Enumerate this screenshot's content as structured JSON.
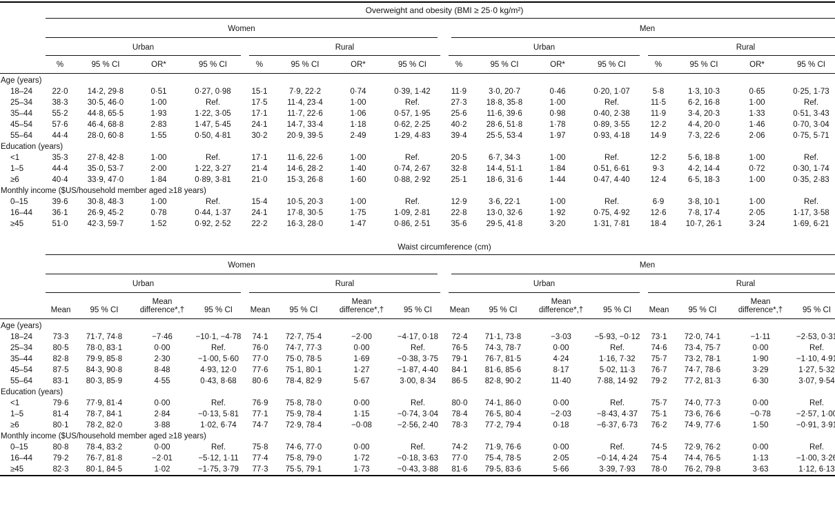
{
  "page": {
    "background": "#ffffff",
    "text_color": "#131313",
    "rule_color": "#000000"
  },
  "tables": [
    {
      "title": "Overweight and obesity (BMI ≥ 25·0 kg/m²)",
      "gender_groups": [
        "Women",
        "Men"
      ],
      "area_groups": [
        "Urban",
        "Rural",
        "Urban",
        "Rural"
      ],
      "columns": [
        "%",
        "95 % CI",
        "OR*",
        "95 % CI"
      ],
      "sections": [
        {
          "label": "Age (years)",
          "rows": [
            {
              "label": "18–24",
              "values": [
                "22·0",
                "14·2, 29·8",
                "0·51",
                "0·27, 0·98",
                "15·1",
                "7·9, 22·2",
                "0·74",
                "0·39, 1·42",
                "11·9",
                "3·0, 20·7",
                "0·46",
                "0·20, 1·07",
                "5·8",
                "1·3, 10·3",
                "0·65",
                "0·25, 1·73"
              ]
            },
            {
              "label": "25–34",
              "values": [
                "38·3",
                "30·5, 46·0",
                "1·00",
                "Ref.",
                "17·5",
                "11·4, 23·4",
                "1·00",
                "Ref.",
                "27·3",
                "18·8, 35·8",
                "1·00",
                "Ref.",
                "11·5",
                "6·2, 16·8",
                "1·00",
                "Ref."
              ]
            },
            {
              "label": "35–44",
              "values": [
                "55·2",
                "44·8, 65·5",
                "1·93",
                "1·22, 3·05",
                "17·1",
                "11·7, 22·6",
                "1·06",
                "0·57, 1·95",
                "25·6",
                "11·6, 39·6",
                "0·98",
                "0·40, 2·38",
                "11·9",
                "3·4, 20·3",
                "1·33",
                "0·51, 3·43"
              ]
            },
            {
              "label": "45–54",
              "values": [
                "57·6",
                "46·4, 68·8",
                "2·83",
                "1·47, 5·45",
                "24·1",
                "14·7, 33·4",
                "1·18",
                "0·62, 2·25",
                "40·2",
                "28·6, 51·8",
                "1·78",
                "0·89, 3·55",
                "12·2",
                "4·4, 20·0",
                "1·46",
                "0·70, 3·04"
              ]
            },
            {
              "label": "55–64",
              "values": [
                "44·4",
                "28·0, 60·8",
                "1·55",
                "0·50, 4·81",
                "30·2",
                "20·9, 39·5",
                "2·49",
                "1·29, 4·83",
                "39·4",
                "25·5, 53·4",
                "1·97",
                "0·93, 4·18",
                "14·9",
                "7·3, 22·6",
                "2·06",
                "0·75, 5·71"
              ]
            }
          ]
        },
        {
          "label": "Education (years)",
          "rows": [
            {
              "label": "<1",
              "values": [
                "35·3",
                "27·8, 42·8",
                "1·00",
                "Ref.",
                "17·1",
                "11·6, 22·6",
                "1·00",
                "Ref.",
                "20·5",
                "6·7, 34·3",
                "1·00",
                "Ref.",
                "12·2",
                "5·6, 18·8",
                "1·00",
                "Ref."
              ]
            },
            {
              "label": "1–5",
              "values": [
                "44·4",
                "35·0, 53·7",
                "2·00",
                "1·22, 3·27",
                "21·4",
                "14·6, 28·2",
                "1·40",
                "0·74, 2·67",
                "32·8",
                "14·4, 51·1",
                "1·84",
                "0·51, 6·61",
                "9·3",
                "4·2, 14·4",
                "0·72",
                "0·30, 1·74"
              ]
            },
            {
              "label": "≥6",
              "values": [
                "40·4",
                "33·9, 47·0",
                "1·84",
                "0·89, 3·81",
                "21·0",
                "15·3, 26·8",
                "1·60",
                "0·88, 2·92",
                "25·1",
                "18·6, 31·6",
                "1·44",
                "0·47, 4·40",
                "12·4",
                "6·5, 18·3",
                "1·00",
                "0·35, 2·83"
              ]
            }
          ]
        },
        {
          "label": "Monthly income ($US/household member aged ≥18 years)",
          "rows": [
            {
              "label": "0–15",
              "values": [
                "39·6",
                "30·8, 48·3",
                "1·00",
                "Ref.",
                "15·4",
                "10·5, 20·3",
                "1·00",
                "Ref.",
                "12·9",
                "3·6, 22·1",
                "1·00",
                "Ref.",
                "6·9",
                "3·8, 10·1",
                "1·00",
                "Ref."
              ]
            },
            {
              "label": "16–44",
              "values": [
                "36·1",
                "26·9, 45·2",
                "0·78",
                "0·44, 1·37",
                "24·1",
                "17·8, 30·5",
                "1·75",
                "1·09, 2·81",
                "22·8",
                "13·0, 32·6",
                "1·92",
                "0·75, 4·92",
                "12·6",
                "7·8, 17·4",
                "2·05",
                "1·17, 3·58"
              ]
            },
            {
              "label": "≥45",
              "values": [
                "51·0",
                "42·3, 59·7",
                "1·52",
                "0·92, 2·52",
                "22·2",
                "16·3, 28·0",
                "1·47",
                "0·86, 2·51",
                "35·6",
                "29·5, 41·8",
                "3·20",
                "1·31, 7·81",
                "18·4",
                "10·7, 26·1",
                "3·24",
                "1·69, 6·21"
              ]
            }
          ]
        }
      ]
    },
    {
      "title": "Waist circumference (cm)",
      "gender_groups": [
        "Women",
        "Men"
      ],
      "area_groups": [
        "Urban",
        "Rural",
        "Urban",
        "Rural"
      ],
      "columns": [
        "Mean",
        "95 % CI",
        "Mean difference*,†",
        "95 % CI"
      ],
      "sections": [
        {
          "label": "Age (years)",
          "rows": [
            {
              "label": "18–24",
              "values": [
                "73·3",
                "71·7, 74·8",
                "−7·46",
                "−10·1, −4·78",
                "74·1",
                "72·7, 75·4",
                "−2·00",
                "−4·17, 0·18",
                "72·4",
                "71·1, 73·8",
                "−3·03",
                "−5·93, −0·12",
                "73·1",
                "72·0, 74·1",
                "−1·11",
                "−2·53, 0·31"
              ]
            },
            {
              "label": "25–34",
              "values": [
                "80·5",
                "78·0, 83·1",
                "0·00",
                "Ref.",
                "76·0",
                "74·7, 77·3",
                "0·00",
                "Ref.",
                "76·5",
                "74·3, 78·7",
                "0·00",
                "Ref.",
                "74·6",
                "73·4, 75·7",
                "0·00",
                "Ref."
              ]
            },
            {
              "label": "35–44",
              "values": [
                "82·8",
                "79·9, 85·8",
                "2·30",
                "−1·00, 5·60",
                "77·0",
                "75·0, 78·5",
                "1·69",
                "−0·38, 3·75",
                "79·1",
                "76·7, 81·5",
                "4·24",
                "1·16, 7·32",
                "75·7",
                "73·2, 78·1",
                "1·90",
                "−1·10, 4·91"
              ]
            },
            {
              "label": "45–54",
              "values": [
                "87·5",
                "84·3, 90·8",
                "8·48",
                "4·93, 12·0",
                "77·6",
                "75·1, 80·1",
                "1·27",
                "−1·87, 4·40",
                "84·1",
                "81·6, 85·6",
                "8·17",
                "5·02, 11·3",
                "76·7",
                "74·7, 78·6",
                "3·29",
                "1·27, 5·32"
              ]
            },
            {
              "label": "55–64",
              "values": [
                "83·1",
                "80·3, 85·9",
                "4·55",
                "0·43, 8·68",
                "80·6",
                "78·4, 82·9",
                "5·67",
                "3·00, 8·34",
                "86·5",
                "82·8, 90·2",
                "11·40",
                "7·88, 14·92",
                "79·2",
                "77·2, 81·3",
                "6·30",
                "3·07, 9·54"
              ]
            }
          ]
        },
        {
          "label": "Education (years)",
          "rows": [
            {
              "label": "<1",
              "values": [
                "79·6",
                "77·9, 81·4",
                "0·00",
                "Ref.",
                "76·9",
                "75·8, 78·0",
                "0·00",
                "Ref.",
                "80·0",
                "74·1, 86·0",
                "0·00",
                "Ref.",
                "75·7",
                "74·0, 77·3",
                "0·00",
                "Ref."
              ]
            },
            {
              "label": "1–5",
              "values": [
                "81·4",
                "78·7, 84·1",
                "2·84",
                "−0·13, 5·81",
                "77·1",
                "75·9, 78·4",
                "1·15",
                "−0·74, 3·04",
                "78·4",
                "76·5, 80·4",
                "−2·03",
                "−8·43, 4·37",
                "75·1",
                "73·6, 76·6",
                "−0·78",
                "−2·57, 1·00"
              ]
            },
            {
              "label": "≥6",
              "values": [
                "80·1",
                "78·2, 82·0",
                "3·88",
                "1·02, 6·74",
                "74·7",
                "72·9, 78·4",
                "−0·08",
                "−2·56, 2·40",
                "78·3",
                "77·2, 79·4",
                "0·18",
                "−6·37, 6·73",
                "76·2",
                "74·9, 77·6",
                "1·50",
                "−0·91, 3·91"
              ]
            }
          ]
        },
        {
          "label": "Monthly income ($US/household member aged ≥18 years)",
          "rows": [
            {
              "label": "0–15",
              "values": [
                "80·8",
                "78·4, 83·2",
                "0·00",
                "Ref.",
                "75·8",
                "74·6, 77·0",
                "0·00",
                "Ref.",
                "74·2",
                "71·9, 76·6",
                "0·00",
                "Ref.",
                "74·5",
                "72·9, 76·2",
                "0·00",
                "Ref."
              ]
            },
            {
              "label": "16–44",
              "values": [
                "79·2",
                "76·7, 81·8",
                "−2·01",
                "−5·12, 1·11",
                "77·4",
                "75·8, 79·0",
                "1·72",
                "−0·18, 3·63",
                "77·0",
                "75·4, 78·5",
                "2·05",
                "−0·14, 4·24",
                "75·4",
                "74·4, 76·5",
                "1·13",
                "−1·00, 3·26"
              ]
            },
            {
              "label": "≥45",
              "values": [
                "82·3",
                "80·1, 84·5",
                "1·02",
                "−1·75, 3·79",
                "77·3",
                "75·5, 79·1",
                "1·73",
                "−0·43, 3·88",
                "81·6",
                "79·5, 83·6",
                "5·66",
                "3·39, 7·93",
                "78·0",
                "76·2, 79·8",
                "3·63",
                "1·12, 6·13"
              ]
            }
          ]
        }
      ]
    }
  ]
}
